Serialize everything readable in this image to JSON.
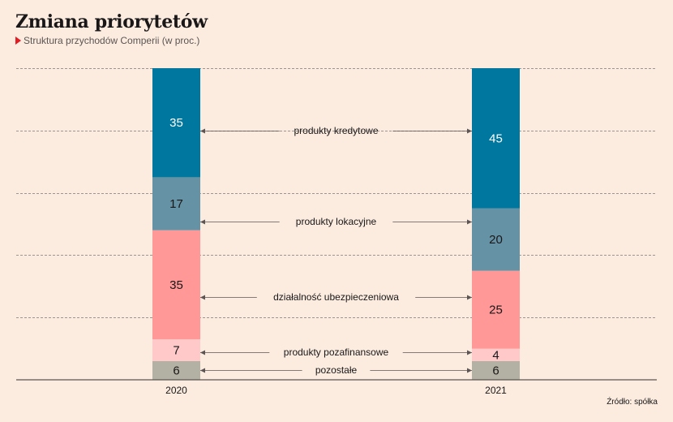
{
  "title": "Zmiana priorytetów",
  "subtitle": "Struktura przychodów Comperii (w proc.)",
  "source": "Źródło: spółka",
  "chart_data": {
    "type": "bar",
    "stacked": true,
    "categories": [
      "2020",
      "2021"
    ],
    "series": [
      {
        "name": "pozostałe",
        "values": [
          6,
          6
        ],
        "color": "#b3b1a3",
        "text_color": "#1a1718"
      },
      {
        "name": "produkty pozafinansowe",
        "values": [
          7,
          4
        ],
        "color": "#ffc8c9",
        "text_color": "#1a1718"
      },
      {
        "name": "działalność ubezpieczeniowa",
        "values": [
          35,
          25
        ],
        "color": "#ff9897",
        "text_color": "#1a1718"
      },
      {
        "name": "produkty lokacyjne",
        "values": [
          17,
          20
        ],
        "color": "#6593a5",
        "text_color": "#1a1718"
      },
      {
        "name": "produkty kredytowe",
        "values": [
          35,
          45
        ],
        "color": "#00779e",
        "text_color": "#ffffff"
      }
    ],
    "ylim": [
      0,
      100
    ],
    "grid": true
  }
}
